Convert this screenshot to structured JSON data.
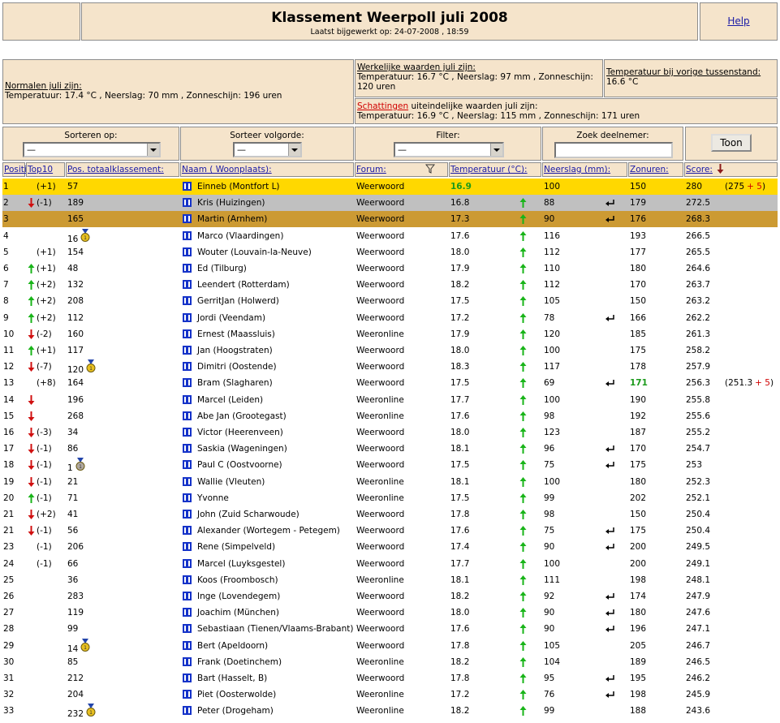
{
  "header": {
    "title": "Klassement Weerpoll juli 2008",
    "subtitle": "Laatst bijgewerkt op: 24-07-2008 , 18:59",
    "help": "Help"
  },
  "info": {
    "normals": {
      "label": "Normalen juli zijn:",
      "text": "Temperatuur: 17.4 °C , Neerslag: 70 mm , Zonneschijn: 196 uren"
    },
    "actual": {
      "label": "Werkelijke waarden juli zijn:",
      "text": "Temperatuur: 16.7 °C , Neerslag: 97 mm , Zonneschijn: 120 uren"
    },
    "previous": {
      "label": "Temperatuur bij vorige tussenstand:",
      "text": "16.6 °C"
    },
    "estimates": {
      "link": "Schattingen",
      "label": " uiteindelijke waarden juli zijn:",
      "text": "Temperatuur: 16.9 °C , Neerslag: 115 mm , Zonneschijn: 171 uren"
    }
  },
  "controls": {
    "sort": {
      "label": "Sorteren op:",
      "value": "—"
    },
    "order": {
      "label": "Sorteer volgorde:",
      "value": "—"
    },
    "filter": {
      "label": "Filter:",
      "value": "—"
    },
    "search": {
      "label": "Zoek deelnemer:"
    },
    "button": "Toon"
  },
  "table": {
    "columns": [
      "Positie:",
      "Top10",
      "Pos. totaalklassement:",
      "Naam ( Woonplaats):",
      "Forum:",
      "Temperatuur (°C):",
      "Neerslag (mm):",
      "Zonuren:",
      "Score:"
    ],
    "rows": [
      [
        "1",
        "(+1)",
        "57",
        "Einneb (Montfort L)",
        "Weerwoord",
        "16.9",
        "100",
        "150",
        "280",
        [
          "(275",
          "+ 5",
          ")"
        ]
      ],
      [
        "2",
        "(-1)",
        "189",
        "Kris (Huizingen)",
        "Weerwoord",
        "16.8",
        "88",
        "179",
        "272.5",
        null
      ],
      [
        "3",
        null,
        "165",
        "Martin (Arnhem)",
        "Weerwoord",
        "17.3",
        "90",
        "176",
        "268.3",
        null
      ],
      [
        "4",
        null,
        "16",
        "Marco (Vlaardingen)",
        "Weerwoord",
        "17.6",
        "116",
        "193",
        "266.5",
        null
      ],
      [
        "5",
        "(+1)",
        "154",
        "Wouter (Louvain-la-Neuve)",
        "Weerwoord",
        "18.0",
        "112",
        "177",
        "265.5",
        null
      ],
      [
        "6",
        "(+1)",
        "48",
        "Ed (Tilburg)",
        "Weerwoord",
        "17.9",
        "110",
        "180",
        "264.6",
        null
      ],
      [
        "7",
        "(+2)",
        "132",
        "Leendert (Rotterdam)",
        "Weerwoord",
        "18.2",
        "112",
        "170",
        "263.7",
        null
      ],
      [
        "8",
        "(+2)",
        "208",
        "GerritJan (Holwerd)",
        "Weerwoord",
        "17.5",
        "105",
        "150",
        "263.2",
        null
      ],
      [
        "9",
        "(+2)",
        "112",
        "Jordi (Veendam)",
        "Weerwoord",
        "17.2",
        "78",
        "166",
        "262.2",
        null
      ],
      [
        "10",
        "(-2)",
        "160",
        "Ernest (Maassluis)",
        "Weeronline",
        "17.9",
        "120",
        "185",
        "261.3",
        null
      ],
      [
        "11",
        "(+1)",
        "117",
        "Jan (Hoogstraten)",
        "Weerwoord",
        "18.0",
        "100",
        "175",
        "258.2",
        null
      ],
      [
        "12",
        "(-7)",
        "120",
        "Dimitri (Oostende)",
        "Weerwoord",
        "18.3",
        "117",
        "178",
        "257.9",
        null
      ],
      [
        "13",
        "(+8)",
        "164",
        "Bram (Slagharen)",
        "Weerwoord",
        "17.5",
        "69",
        "171",
        "256.3",
        [
          "(251.3",
          "+ 5",
          ")"
        ]
      ],
      [
        "14",
        null,
        "196",
        "Marcel (Leiden)",
        "Weeronline",
        "17.7",
        "100",
        "190",
        "255.8",
        null
      ],
      [
        "15",
        null,
        "268",
        "Abe Jan (Grootegast)",
        "Weeronline",
        "17.6",
        "98",
        "192",
        "255.6",
        null
      ],
      [
        "16",
        "(-3)",
        "34",
        "Victor (Heerenveen)",
        "Weerwoord",
        "18.0",
        "123",
        "187",
        "255.2",
        null
      ],
      [
        "17",
        "(-1)",
        "86",
        "Saskia (Wageningen)",
        "Weerwoord",
        "18.1",
        "96",
        "170",
        "254.7",
        null
      ],
      [
        "18",
        "(-1)",
        "1",
        "Paul C (Oostvoorne)",
        "Weerwoord",
        "17.5",
        "75",
        "175",
        "253",
        null
      ],
      [
        "19",
        "(-1)",
        "21",
        "Wallie (Vleuten)",
        "Weeronline",
        "18.1",
        "100",
        "180",
        "252.3",
        null
      ],
      [
        "20",
        "(-1)",
        "71",
        "Yvonne",
        "Weeronline",
        "17.5",
        "99",
        "202",
        "252.1",
        null
      ],
      [
        "21",
        "(+2)",
        "41",
        "John (Zuid Scharwoude)",
        "Weerwoord",
        "17.8",
        "98",
        "150",
        "250.4",
        null
      ],
      [
        "21",
        "(-1)",
        "56",
        "Alexander (Wortegem - Petegem)",
        "Weerwoord",
        "17.6",
        "75",
        "175",
        "250.4",
        null
      ],
      [
        "23",
        "(-1)",
        "206",
        "Rene (Simpelveld)",
        "Weerwoord",
        "17.4",
        "90",
        "200",
        "249.5",
        null
      ],
      [
        "24",
        "(-1)",
        "66",
        "Marcel (Luyksgestel)",
        "Weerwoord",
        "17.7",
        "100",
        "200",
        "249.1",
        null
      ],
      [
        "25",
        null,
        "36",
        "Koos (Froombosch)",
        "Weeronline",
        "18.1",
        "111",
        "198",
        "248.1",
        null
      ],
      [
        "26",
        null,
        "283",
        "Inge (Lovendegem)",
        "Weerwoord",
        "18.2",
        "92",
        "174",
        "247.9",
        null
      ],
      [
        "27",
        null,
        "119",
        "Joachim (München)",
        "Weerwoord",
        "18.0",
        "90",
        "180",
        "247.6",
        null
      ],
      [
        "28",
        null,
        "99",
        "Sebastiaan (Tienen/Vlaams-Brabant)",
        "Weerwoord",
        "17.6",
        "90",
        "196",
        "247.1",
        null
      ],
      [
        "29",
        null,
        "14",
        "Bert (Apeldoorn)",
        "Weerwoord",
        "17.8",
        "105",
        "205",
        "246.7",
        null
      ],
      [
        "30",
        null,
        "85",
        "Frank (Doetinchem)",
        "Weeronline",
        "18.2",
        "104",
        "189",
        "246.5",
        null
      ],
      [
        "31",
        null,
        "212",
        "Bart (Hasselt, B)",
        "Weerwoord",
        "17.8",
        "95",
        "195",
        "246.2",
        null
      ],
      [
        "32",
        null,
        "204",
        "Piet (Oosterwolde)",
        "Weeronline",
        "17.2",
        "76",
        "198",
        "245.9",
        null
      ],
      [
        "33",
        null,
        "232",
        "Peter (Drogeham)",
        "Weeronline",
        "18.2",
        "99",
        "188",
        "243.6",
        null
      ]
    ]
  }
}
